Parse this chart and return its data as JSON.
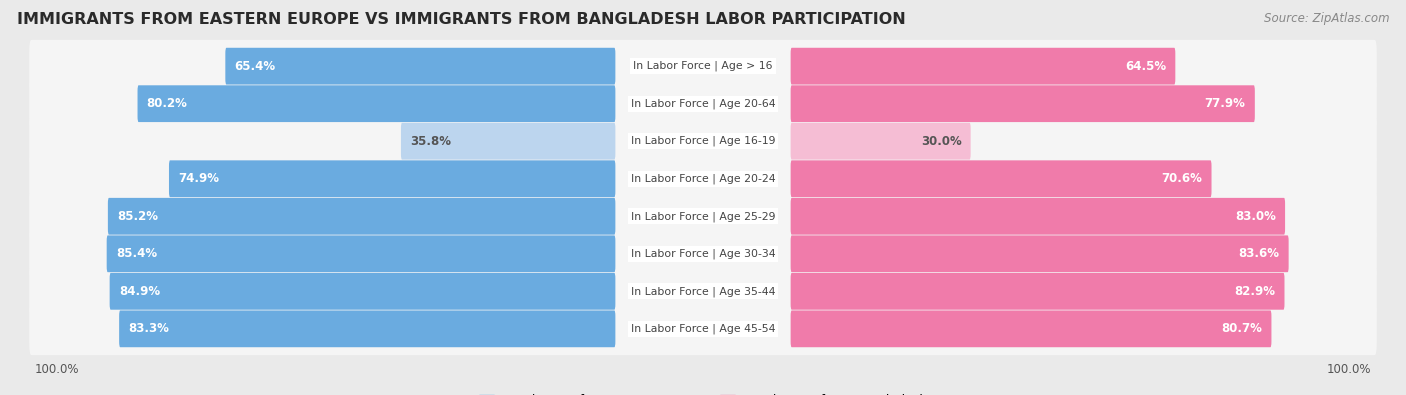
{
  "title": "IMMIGRANTS FROM EASTERN EUROPE VS IMMIGRANTS FROM BANGLADESH LABOR PARTICIPATION",
  "source": "Source: ZipAtlas.com",
  "categories": [
    "In Labor Force | Age > 16",
    "In Labor Force | Age 20-64",
    "In Labor Force | Age 16-19",
    "In Labor Force | Age 20-24",
    "In Labor Force | Age 25-29",
    "In Labor Force | Age 30-34",
    "In Labor Force | Age 35-44",
    "In Labor Force | Age 45-54"
  ],
  "eastern_europe": [
    65.4,
    80.2,
    35.8,
    74.9,
    85.2,
    85.4,
    84.9,
    83.3
  ],
  "bangladesh": [
    64.5,
    77.9,
    30.0,
    70.6,
    83.0,
    83.6,
    82.9,
    80.7
  ],
  "color_eastern": "#6aabe0",
  "color_bangladesh": "#f07baa",
  "color_eastern_light": "#bcd5ee",
  "color_bangladesh_light": "#f5bdd4",
  "background_color": "#eaeaea",
  "row_bg_color": "#f5f5f5",
  "legend_eastern": "Immigrants from Eastern Europe",
  "legend_bangladesh": "Immigrants from Bangladesh",
  "title_fontsize": 11.5,
  "source_fontsize": 8.5,
  "bar_label_fontsize": 8.5,
  "category_fontsize": 7.8,
  "legend_fontsize": 9,
  "axis_label_fontsize": 8.5
}
